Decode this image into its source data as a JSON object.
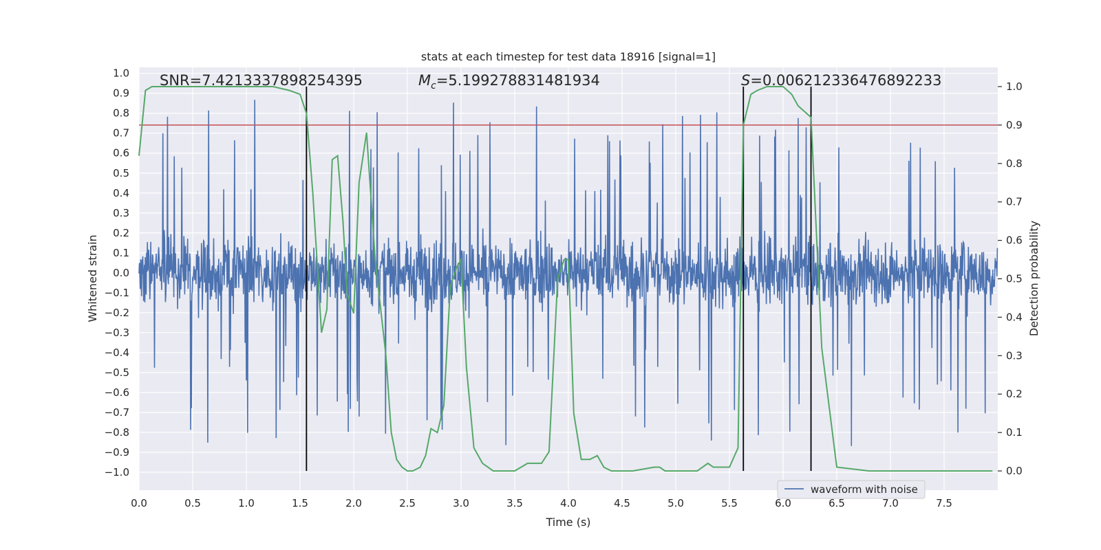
{
  "chart_data": {
    "type": "line",
    "title": "stats at each timestep for test data 18916 [signal=1]",
    "xlabel": "Time (s)",
    "ylabel_left": "Whitened strain",
    "ylabel_right": "Detection probability",
    "xlim": [
      0.0,
      8.0
    ],
    "ylim_left": [
      -1.09,
      1.03
    ],
    "ylim_right": [
      -0.05,
      1.05
    ],
    "x_ticks": [
      0.0,
      0.5,
      1.0,
      1.5,
      2.0,
      2.5,
      3.0,
      3.5,
      4.0,
      4.5,
      5.0,
      5.5,
      6.0,
      6.5,
      7.0,
      7.5
    ],
    "x_tick_labels": [
      "0.0",
      "0.5",
      "1.0",
      "1.5",
      "2.0",
      "2.5",
      "3.0",
      "3.5",
      "4.0",
      "4.5",
      "5.0",
      "5.5",
      "6.0",
      "6.5",
      "7.0",
      "7.5"
    ],
    "y_left_ticks": [
      1.0,
      0.9,
      0.8,
      0.7,
      0.6,
      0.5,
      0.4,
      0.3,
      0.2,
      0.1,
      0.0,
      -0.1,
      -0.2,
      -0.3,
      -0.4,
      -0.5,
      -0.6,
      -0.7,
      -0.8,
      -0.9,
      -1.0
    ],
    "y_left_tick_labels": [
      "1.0",
      "0.9",
      "0.8",
      "0.7",
      "0.6",
      "0.5",
      "0.4",
      "0.3",
      "0.2",
      "0.1",
      "0.0",
      "−0.1",
      "−0.2",
      "−0.3",
      "−0.4",
      "−0.5",
      "−0.6",
      "−0.7",
      "−0.8",
      "−0.9",
      "−1.0"
    ],
    "y_right_ticks": [
      1.0,
      0.9,
      0.8,
      0.7,
      0.6,
      0.5,
      0.4,
      0.3,
      0.2,
      0.1,
      0.0
    ],
    "y_right_tick_labels": [
      "1.0",
      "0.9",
      "0.8",
      "0.7",
      "0.6",
      "0.5",
      "0.4",
      "0.3",
      "0.2",
      "0.1",
      "0.0"
    ],
    "threshold": 0.9,
    "vertical_markers": [
      1.56,
      5.63,
      6.26
    ],
    "stats": {
      "snr": "SNR=7.4213337898254395",
      "mc_symbol": "M",
      "mc_sub": "c",
      "mc_value": "=5.199278831481934",
      "s_symbol": "S",
      "s_value": "=0.006212336476892233"
    },
    "legend": {
      "label": "waveform with noise",
      "placement": "lower-right"
    },
    "series": [
      {
        "name": "waveform with noise",
        "axis": "left",
        "color": "#4c72b0",
        "kind": "noise",
        "duration": 8.0,
        "samples": 2048,
        "core_amplitude": 0.35,
        "peak_amplitude": 0.87
      },
      {
        "name": "detection probability",
        "axis": "right",
        "color": "#55a868",
        "x": [
          0.0,
          0.06,
          0.12,
          0.25,
          0.5,
          0.75,
          1.0,
          1.25,
          1.4,
          1.5,
          1.56,
          1.62,
          1.7,
          1.75,
          1.8,
          1.85,
          1.9,
          1.94,
          2.0,
          2.05,
          2.12,
          2.2,
          2.3,
          2.35,
          2.4,
          2.45,
          2.5,
          2.55,
          2.62,
          2.67,
          2.72,
          2.78,
          2.84,
          2.9,
          2.96,
          3.0,
          3.05,
          3.12,
          3.2,
          3.3,
          3.4,
          3.5,
          3.62,
          3.68,
          3.75,
          3.82,
          3.9,
          3.96,
          4.0,
          4.05,
          4.12,
          4.2,
          4.27,
          4.33,
          4.4,
          4.6,
          4.8,
          4.85,
          4.9,
          5.0,
          5.1,
          5.2,
          5.3,
          5.35,
          5.4,
          5.5,
          5.58,
          5.63,
          5.7,
          5.76,
          5.85,
          6.0,
          6.08,
          6.14,
          6.26,
          6.36,
          6.5,
          6.8,
          7.0,
          7.2,
          7.5,
          7.8,
          7.95
        ],
        "values": [
          0.82,
          0.99,
          1.0,
          1.0,
          1.0,
          1.0,
          1.0,
          1.0,
          0.99,
          0.98,
          0.93,
          0.72,
          0.36,
          0.42,
          0.81,
          0.82,
          0.65,
          0.46,
          0.41,
          0.75,
          0.88,
          0.55,
          0.3,
          0.1,
          0.03,
          0.01,
          0.0,
          0.0,
          0.01,
          0.04,
          0.11,
          0.1,
          0.17,
          0.48,
          0.53,
          0.55,
          0.27,
          0.06,
          0.02,
          0.0,
          0.0,
          0.0,
          0.02,
          0.02,
          0.02,
          0.05,
          0.5,
          0.55,
          0.55,
          0.15,
          0.03,
          0.03,
          0.04,
          0.01,
          0.0,
          0.0,
          0.01,
          0.01,
          0.0,
          0.0,
          0.0,
          0.0,
          0.02,
          0.01,
          0.01,
          0.01,
          0.06,
          0.9,
          0.98,
          0.99,
          1.0,
          1.0,
          0.98,
          0.95,
          0.92,
          0.32,
          0.01,
          0.0,
          0.0,
          0.0,
          0.0,
          0.0,
          0.0
        ]
      }
    ]
  }
}
